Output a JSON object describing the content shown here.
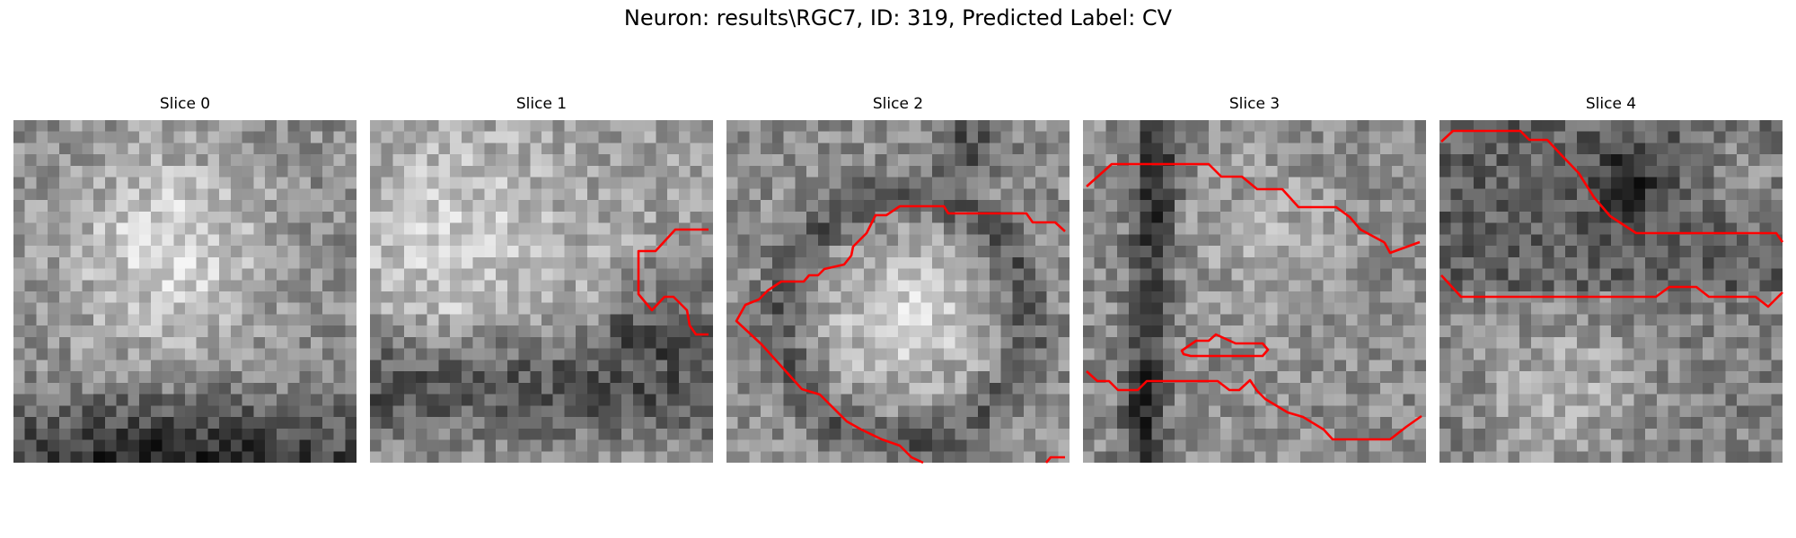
{
  "figure": {
    "title": "Neuron: results\\RGC7, ID: 319, Predicted Label: CV"
  },
  "colors": {
    "contour": "#ff0000",
    "background": "#ffffff"
  },
  "panels": [
    {
      "title": "Slice 0"
    },
    {
      "title": "Slice 1"
    },
    {
      "title": "Slice 2"
    },
    {
      "title": "Slice 3"
    },
    {
      "title": "Slice 4"
    }
  ]
}
